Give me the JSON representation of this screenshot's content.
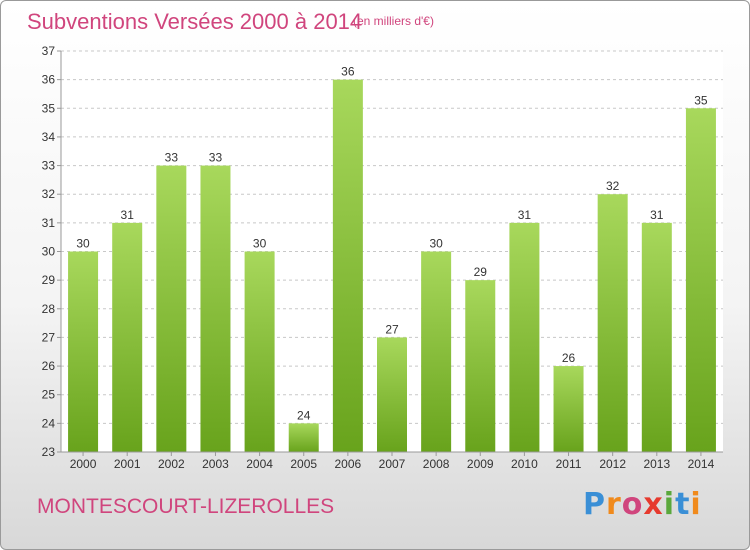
{
  "header": {
    "title": "Subventions Versées 2000 à 2014",
    "subtitle": "(en milliers d'€)"
  },
  "footer": {
    "commune": "MONTESCOURT-LIZEROLLES",
    "logo_text": "Proxiti",
    "logo_colors": [
      "#3a8fd6",
      "#f08a1c",
      "#d0457d",
      "#e63a2e",
      "#5aa83c",
      "#3a8fd6",
      "#f08a1c"
    ]
  },
  "colors": {
    "title": "#d0457d",
    "bar_light": "#a6d65a",
    "bar_dark": "#6aa51e",
    "grid": "#c8c8c8"
  },
  "chart_data": {
    "type": "bar",
    "title": "Subventions Versées 2000 à 2014",
    "subtitle": "(en milliers d'€)",
    "categories": [
      "2000",
      "2001",
      "2002",
      "2003",
      "2004",
      "2005",
      "2006",
      "2007",
      "2008",
      "2009",
      "2010",
      "2011",
      "2012",
      "2013",
      "2014"
    ],
    "values": [
      30,
      31,
      33,
      33,
      30,
      24,
      36,
      27,
      30,
      29,
      31,
      26,
      32,
      31,
      35
    ],
    "ylim": [
      23,
      37
    ],
    "yticks": [
      23,
      24,
      25,
      26,
      27,
      28,
      29,
      30,
      31,
      32,
      33,
      34,
      35,
      36,
      37
    ],
    "grid": true,
    "data_labels": true
  }
}
